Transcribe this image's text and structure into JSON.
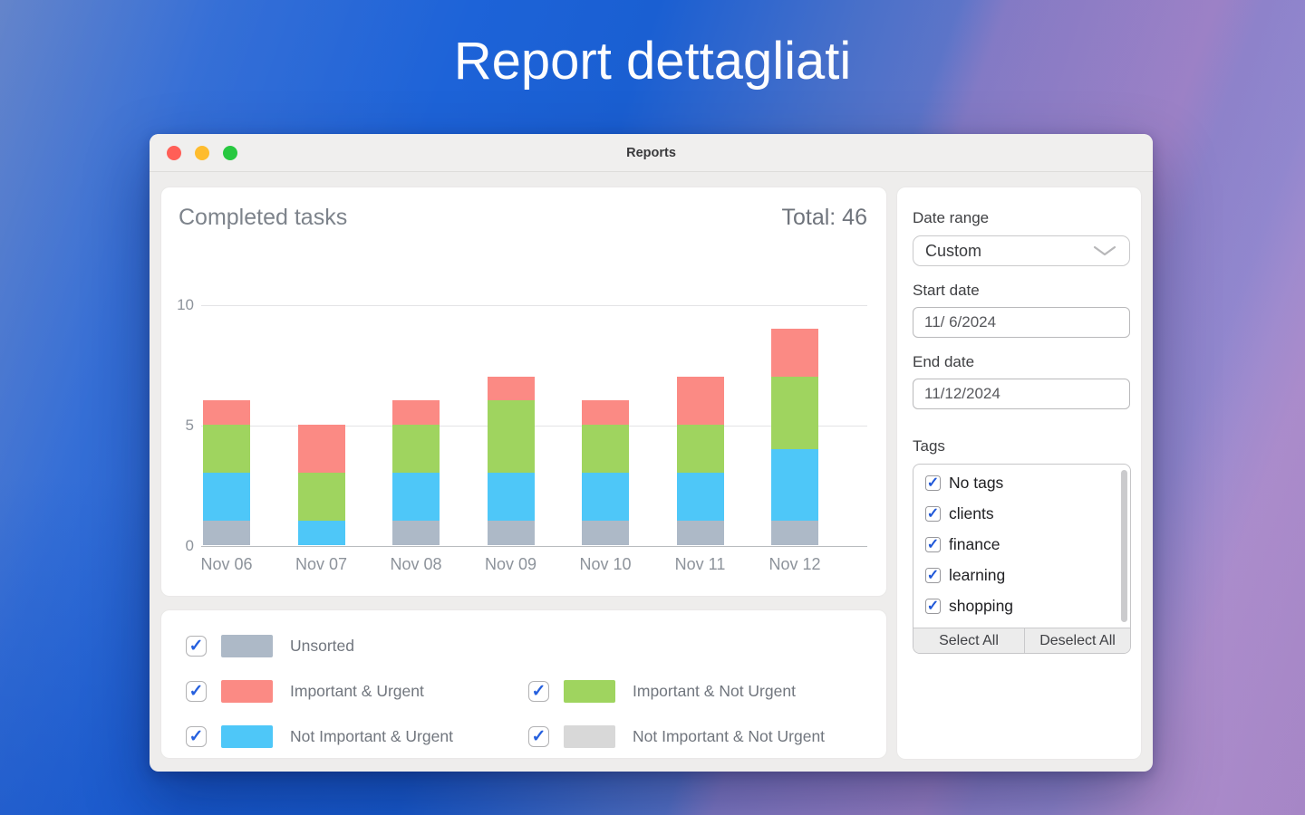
{
  "hero_title": "Report dettagliati",
  "window": {
    "title": "Reports"
  },
  "chart_card": {
    "title": "Completed tasks",
    "total_label": "Total: 46"
  },
  "chart_data": {
    "type": "bar",
    "stacked": true,
    "title": "Completed tasks",
    "total": 46,
    "categories": [
      "Nov 06",
      "Nov 07",
      "Nov 08",
      "Nov 09",
      "Nov 10",
      "Nov 11",
      "Nov 12"
    ],
    "series": [
      {
        "name": "Unsorted",
        "color": "#adb9c7",
        "values": [
          1,
          0,
          1,
          1,
          1,
          1,
          1
        ]
      },
      {
        "name": "Not Important & Urgent",
        "color": "#4ec7f8",
        "values": [
          2,
          1,
          2,
          2,
          2,
          2,
          3
        ]
      },
      {
        "name": "Important & Not Urgent",
        "color": "#9fd45f",
        "values": [
          2,
          2,
          2,
          3,
          2,
          2,
          3
        ]
      },
      {
        "name": "Important & Urgent",
        "color": "#fb8a84",
        "values": [
          1,
          2,
          1,
          1,
          1,
          2,
          2
        ]
      }
    ],
    "ylim": [
      0,
      10
    ],
    "yticks": [
      0,
      5,
      10
    ],
    "grid": true,
    "legend_position": "bottom-card"
  },
  "legend": {
    "rows": [
      [
        {
          "label": "Unsorted",
          "color": "#adb9c7",
          "checked": true
        }
      ],
      [
        {
          "label": "Important & Urgent",
          "color": "#fb8a84",
          "checked": true
        },
        {
          "label": "Important & Not Urgent",
          "color": "#9fd45f",
          "checked": true
        }
      ],
      [
        {
          "label": "Not Important & Urgent",
          "color": "#4ec7f8",
          "checked": true
        },
        {
          "label": "Not Important & Not Urgent",
          "color": "#d8d8d8",
          "checked": true
        }
      ]
    ],
    "checkmark_color": "#2660de"
  },
  "sidebar": {
    "date_range_label": "Date range",
    "date_range_value": "Custom",
    "start_date_label": "Start date",
    "start_date_value": "11/ 6/2024",
    "end_date_label": "End date",
    "end_date_value": "11/12/2024",
    "tags_label": "Tags",
    "tags": [
      {
        "label": "No tags",
        "checked": true
      },
      {
        "label": "clients",
        "checked": true
      },
      {
        "label": "finance",
        "checked": true
      },
      {
        "label": "learning",
        "checked": true
      },
      {
        "label": "shopping",
        "checked": true
      }
    ],
    "select_all_label": "Select All",
    "deselect_all_label": "Deselect All"
  },
  "colors": {
    "accent_blue_check": "#2660de",
    "traffic_red": "#ff5f57",
    "traffic_yellow": "#febc2e",
    "traffic_green": "#28c840"
  }
}
